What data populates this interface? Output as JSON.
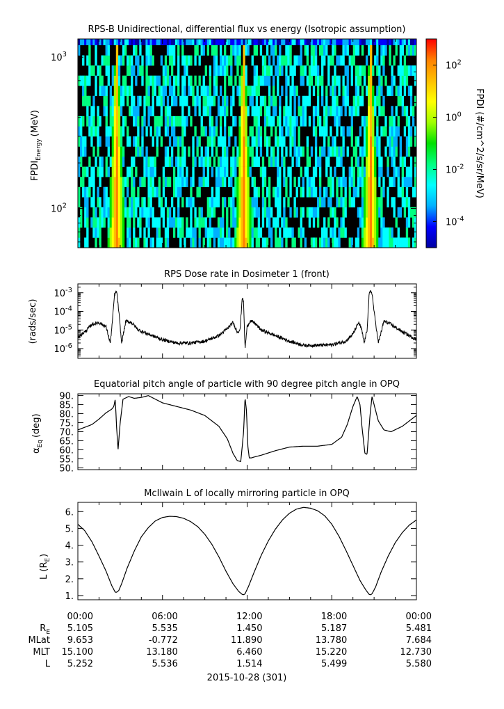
{
  "chart_data": [
    {
      "type": "heatmap",
      "title": "RPS-B  Unidirectional, differential flux vs energy (Isotropic assumption)",
      "ylabel": "FPDI",
      "ylabel_sub": "Energy",
      "ylabel_unit": "(MeV)",
      "yscale": "log",
      "ylim": [
        55,
        1320
      ],
      "ytick_labels": [
        {
          "base": "10",
          "exp": "2",
          "value": 100
        },
        {
          "base": "10",
          "exp": "3",
          "value": 1000
        }
      ],
      "xlim": [
        0,
        24
      ],
      "colorbar": {
        "label": "FPDI (#/cm^2/s/sr/MeV)",
        "scale": "log",
        "range": [
          1e-05,
          1000.0
        ],
        "tick_labels": [
          {
            "base": "10",
            "exp": "2",
            "value": 100
          },
          {
            "base": "10",
            "exp": "0",
            "value": 1
          },
          {
            "base": "10",
            "exp": "-2",
            "value": 0.01
          },
          {
            "base": "10",
            "exp": "-4",
            "value": 0.0001
          }
        ],
        "colors": [
          "#0000a0",
          "#0000ff",
          "#00b0ff",
          "#00ffff",
          "#00ff80",
          "#00e000",
          "#a0ff00",
          "#ffff00",
          "#ffc000",
          "#ff8000",
          "#ff0000"
        ]
      },
      "belt_crossings_hours": [
        2.75,
        11.75,
        20.75
      ],
      "note_top_band_energy_mev": [
        1200,
        1320
      ]
    },
    {
      "type": "line",
      "title": "RPS  Dose rate in Dosimeter 1 (front)",
      "ylabel": "(rads/sec)",
      "yscale": "log",
      "ylim": [
        3e-07,
        0.003
      ],
      "ytick_labels": [
        {
          "base": "10",
          "exp": "-3",
          "value": 0.001
        },
        {
          "base": "10",
          "exp": "-4",
          "value": 0.0001
        },
        {
          "base": "10",
          "exp": "-5",
          "value": 1e-05
        },
        {
          "base": "10",
          "exp": "-6",
          "value": 1e-06
        }
      ],
      "xlim": [
        0,
        24
      ],
      "x": [
        0,
        0.5,
        1,
        1.5,
        2,
        2.3,
        2.45,
        2.6,
        2.75,
        2.9,
        3.1,
        3.4,
        3.8,
        4.3,
        5,
        6,
        7,
        8,
        9,
        10,
        10.6,
        11.0,
        11.3,
        11.5,
        11.65,
        11.75,
        11.85,
        12.0,
        12.2,
        12.5,
        13,
        14,
        15,
        16,
        17,
        18,
        19,
        19.5,
        19.9,
        20.1,
        20.3,
        20.5,
        20.65,
        20.75,
        20.85,
        21.0,
        21.3,
        21.7,
        22.2,
        23,
        24
      ],
      "values": [
        4e-06,
        8e-06,
        2e-05,
        2.5e-05,
        1.5e-05,
        2e-06,
        3e-05,
        0.0008,
        0.0012,
        0.0001,
        2e-06,
        3e-05,
        2.5e-05,
        1e-05,
        6e-06,
        3e-06,
        2e-06,
        2e-06,
        2.5e-06,
        5e-06,
        1.2e-05,
        2.5e-05,
        8e-06,
        1e-05,
        0.0006,
        0.0003,
        1e-06,
        1.5e-05,
        3e-05,
        2.5e-05,
        1e-05,
        5e-06,
        2.5e-06,
        1.5e-06,
        1.5e-06,
        1.6e-06,
        2.5e-06,
        6e-06,
        2.5e-05,
        1.2e-05,
        2e-06,
        1e-05,
        0.0008,
        0.0012,
        0.001,
        0.0001,
        2e-06,
        3e-05,
        2e-05,
        8e-06,
        3e-06
      ]
    },
    {
      "type": "line",
      "title": "Equatorial pitch angle of particle with 90 degree pitch angle in OPQ",
      "ylabel": "α",
      "ylabel_sub": "Eq",
      "ylabel_unit": "(deg)",
      "ylim": [
        49,
        91
      ],
      "yticks": [
        50,
        55,
        60,
        65,
        70,
        75,
        80,
        85,
        90
      ],
      "ytick_labels": [
        "50.",
        "55.",
        "60.",
        "65.",
        "70.",
        "75.",
        "80.",
        "85.",
        "90."
      ],
      "xlim": [
        0,
        24
      ],
      "x": [
        0,
        0.5,
        1,
        1.5,
        2,
        2.4,
        2.55,
        2.65,
        2.75,
        2.85,
        3.0,
        3.2,
        3.6,
        4,
        4.5,
        5,
        5.5,
        6,
        7,
        8,
        9,
        10,
        10.6,
        11.0,
        11.3,
        11.55,
        11.75,
        11.85,
        11.95,
        12.05,
        12.15,
        12.3,
        12.5,
        13,
        14,
        15,
        16,
        17,
        18,
        18.7,
        19.1,
        19.5,
        19.8,
        20.0,
        20.15,
        20.35,
        20.5,
        20.7,
        20.85,
        21.0,
        21.3,
        21.7,
        22.2,
        23,
        24
      ],
      "values": [
        71,
        72.5,
        74,
        77,
        80.5,
        82.5,
        84,
        88,
        72,
        60,
        75,
        88,
        89.5,
        88.5,
        89,
        90,
        88,
        86,
        84,
        82,
        79,
        73,
        66,
        58,
        54,
        53.5,
        70,
        89,
        82,
        62,
        55.5,
        55.5,
        56,
        57,
        59.5,
        61.5,
        62,
        62,
        63,
        67,
        74,
        84,
        89.5,
        85,
        72,
        58,
        57.5,
        78,
        89.5,
        85,
        76,
        71,
        70,
        73,
        79
      ]
    },
    {
      "type": "line",
      "title": "McIlwain L of locally mirroring particle in OPQ",
      "ylabel": "L (R",
      "ylabel_sub": "E",
      "ylabel_unit": ")",
      "ylim": [
        0.75,
        6.55
      ],
      "yticks": [
        1,
        2,
        3,
        4,
        5,
        6
      ],
      "ytick_labels": [
        "1.",
        "2.",
        "3.",
        "4.",
        "5.",
        "6."
      ],
      "xlim": [
        0,
        24
      ],
      "x": [
        0,
        0.5,
        1,
        1.5,
        2,
        2.4,
        2.65,
        2.75,
        2.9,
        3.1,
        3.5,
        4,
        4.5,
        5,
        5.5,
        6,
        6.5,
        7,
        7.5,
        8,
        8.5,
        9,
        9.5,
        10,
        10.5,
        11,
        11.4,
        11.65,
        11.75,
        11.85,
        12.1,
        12.5,
        13,
        13.5,
        14,
        14.5,
        15,
        15.5,
        16,
        16.5,
        17,
        17.5,
        18,
        18.5,
        19,
        19.5,
        20,
        20.4,
        20.65,
        20.75,
        20.85,
        21.1,
        21.5,
        22,
        22.5,
        23,
        23.5,
        24
      ],
      "values": [
        5.25,
        4.85,
        4.2,
        3.35,
        2.45,
        1.6,
        1.2,
        1.2,
        1.3,
        1.7,
        2.65,
        3.65,
        4.5,
        5.05,
        5.45,
        5.65,
        5.72,
        5.7,
        5.6,
        5.4,
        5.1,
        4.65,
        4.05,
        3.3,
        2.45,
        1.7,
        1.25,
        1.07,
        1.05,
        1.1,
        1.55,
        2.4,
        3.4,
        4.25,
        4.95,
        5.5,
        5.9,
        6.15,
        6.25,
        6.2,
        6.05,
        5.75,
        5.25,
        4.55,
        3.7,
        2.8,
        1.9,
        1.35,
        1.07,
        1.05,
        1.1,
        1.5,
        2.4,
        3.35,
        4.15,
        4.75,
        5.2,
        5.5
      ]
    }
  ],
  "x_axis": {
    "ticks_hours": [
      0,
      6,
      12,
      18,
      24
    ],
    "tick_labels": [
      "00:00",
      "06:00",
      "12:00",
      "18:00",
      "00:00"
    ],
    "date_label": "2015-10-28 (301)"
  },
  "ephemeris": {
    "rows": [
      {
        "label": "R",
        "sub": "E",
        "values": [
          "5.105",
          "5.535",
          "1.450",
          "5.187",
          "5.481"
        ]
      },
      {
        "label": "MLat",
        "sub": "",
        "values": [
          "9.653",
          "-0.772",
          "11.890",
          "13.780",
          "7.684"
        ]
      },
      {
        "label": "MLT",
        "sub": "",
        "values": [
          "15.100",
          "13.180",
          "6.460",
          "15.220",
          "12.730"
        ]
      },
      {
        "label": "L",
        "sub": "",
        "values": [
          "5.252",
          "5.536",
          "1.514",
          "5.499",
          "5.580"
        ]
      }
    ]
  }
}
